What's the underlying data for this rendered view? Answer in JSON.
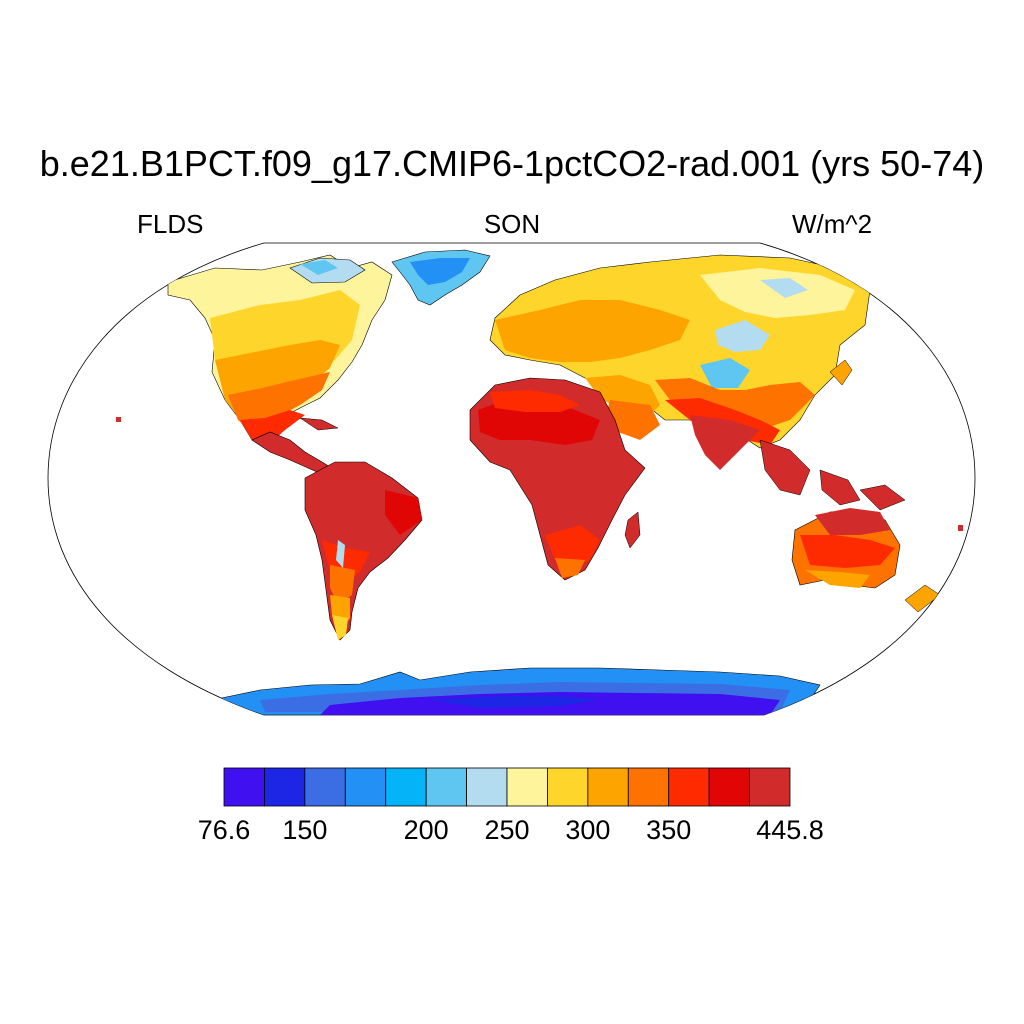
{
  "title": "b.e21.B1PCT.f09_g17.CMIP6-1pctCO2-rad.001 (yrs 50-74)",
  "left_label": "FLDS",
  "center_label": "SON",
  "right_label": "W/m^2",
  "colorbar": {
    "colors": [
      "#4010f0",
      "#1e26e6",
      "#3b6ee4",
      "#2390f5",
      "#04b3f8",
      "#5ec6f0",
      "#b4dcf0",
      "#fef49b",
      "#fed52a",
      "#fea400",
      "#fe7200",
      "#fe2a00",
      "#e00606",
      "#d22b2b"
    ],
    "labels": [
      {
        "value": 76.6,
        "text": "76.6"
      },
      {
        "value": 150,
        "text": "150"
      },
      {
        "value": 200,
        "text": "200"
      },
      {
        "value": 250,
        "text": "250"
      },
      {
        "value": 300,
        "text": "300"
      },
      {
        "value": 350,
        "text": "350"
      },
      {
        "value": 445.8,
        "text": "445.8"
      }
    ]
  }
}
